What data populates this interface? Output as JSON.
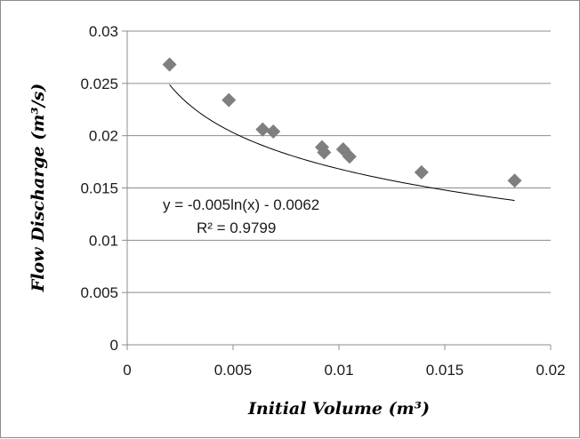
{
  "chart_data": {
    "type": "scatter",
    "xlabel": "Initial Volume (m³)",
    "ylabel": "Flow Discharge (m³/s)",
    "xlim": [
      0,
      0.02
    ],
    "ylim": [
      0,
      0.03
    ],
    "x_ticks": [
      "0",
      "0.005",
      "0.01",
      "0.015",
      "0.02"
    ],
    "y_ticks": [
      "0",
      "0.005",
      "0.01",
      "0.015",
      "0.02",
      "0.025",
      "0.03"
    ],
    "grid": "horizontal",
    "legend": "none",
    "marker": "diamond",
    "marker_color": "#7f7f7f",
    "points": [
      {
        "x": 0.002,
        "y": 0.0268
      },
      {
        "x": 0.0048,
        "y": 0.0234
      },
      {
        "x": 0.0064,
        "y": 0.0206
      },
      {
        "x": 0.0069,
        "y": 0.0204
      },
      {
        "x": 0.0092,
        "y": 0.0189
      },
      {
        "x": 0.0093,
        "y": 0.0184
      },
      {
        "x": 0.0102,
        "y": 0.0187
      },
      {
        "x": 0.0105,
        "y": 0.018
      },
      {
        "x": 0.0139,
        "y": 0.0165
      },
      {
        "x": 0.0183,
        "y": 0.0157
      }
    ],
    "trendline": {
      "type": "logarithmic",
      "a": -0.005,
      "b": -0.0062,
      "x_range": [
        0.002,
        0.0183
      ],
      "equation_text": "y = -0.005ln(x) - 0.0062",
      "r2_text": "R² = 0.9799"
    }
  }
}
